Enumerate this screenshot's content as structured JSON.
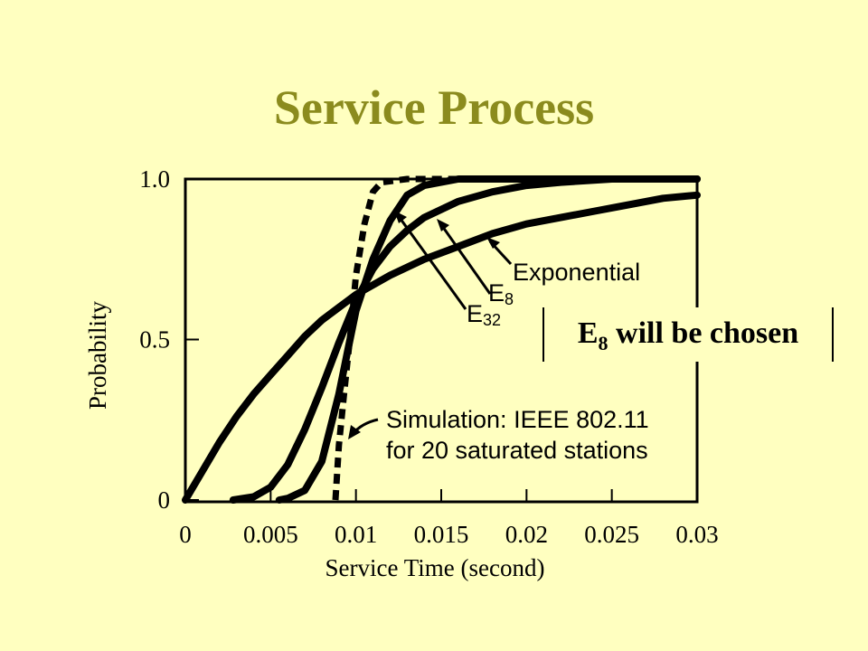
{
  "slide": {
    "title": "Service Process",
    "callout": {
      "main": "E",
      "sub": "8",
      "rest": " will be chosen"
    }
  },
  "chart_data": {
    "type": "line",
    "xlabel": "Service Time (second)",
    "ylabel": "Probability",
    "xlim": [
      0,
      0.03
    ],
    "ylim": [
      0,
      1.0
    ],
    "x_ticks": [
      {
        "v": 0,
        "label": "0"
      },
      {
        "v": 0.005,
        "label": "0.005"
      },
      {
        "v": 0.01,
        "label": "0.01"
      },
      {
        "v": 0.015,
        "label": "0.015"
      },
      {
        "v": 0.02,
        "label": "0.02"
      },
      {
        "v": 0.025,
        "label": "0.025"
      },
      {
        "v": 0.03,
        "label": "0.03"
      }
    ],
    "y_ticks": [
      {
        "v": 0,
        "label": "0"
      },
      {
        "v": 0.5,
        "label": "0.5"
      },
      {
        "v": 1.0,
        "label": "1.0"
      }
    ],
    "grid": false,
    "series": [
      {
        "name": "Exponential",
        "style": "solid",
        "points": [
          [
            0,
            0
          ],
          [
            0.001,
            0.09
          ],
          [
            0.002,
            0.18
          ],
          [
            0.003,
            0.26
          ],
          [
            0.004,
            0.33
          ],
          [
            0.005,
            0.39
          ],
          [
            0.006,
            0.45
          ],
          [
            0.007,
            0.51
          ],
          [
            0.008,
            0.56
          ],
          [
            0.009,
            0.6
          ],
          [
            0.01,
            0.64
          ],
          [
            0.012,
            0.7
          ],
          [
            0.014,
            0.75
          ],
          [
            0.016,
            0.79
          ],
          [
            0.018,
            0.83
          ],
          [
            0.02,
            0.86
          ],
          [
            0.022,
            0.88
          ],
          [
            0.024,
            0.9
          ],
          [
            0.026,
            0.92
          ],
          [
            0.028,
            0.94
          ],
          [
            0.03,
            0.95
          ]
        ]
      },
      {
        "name": "E8",
        "label_main": "E",
        "label_sub": "8",
        "style": "solid",
        "points": [
          [
            0.0028,
            0
          ],
          [
            0.004,
            0.01
          ],
          [
            0.005,
            0.04
          ],
          [
            0.006,
            0.11
          ],
          [
            0.007,
            0.22
          ],
          [
            0.008,
            0.35
          ],
          [
            0.009,
            0.49
          ],
          [
            0.01,
            0.62
          ],
          [
            0.011,
            0.72
          ],
          [
            0.012,
            0.79
          ],
          [
            0.013,
            0.84
          ],
          [
            0.014,
            0.88
          ],
          [
            0.016,
            0.93
          ],
          [
            0.018,
            0.96
          ],
          [
            0.02,
            0.98
          ],
          [
            0.022,
            0.99
          ],
          [
            0.025,
            1.0
          ],
          [
            0.03,
            1.0
          ]
        ]
      },
      {
        "name": "E32",
        "label_main": "E",
        "label_sub": "32",
        "style": "solid",
        "points": [
          [
            0.0055,
            0
          ],
          [
            0.006,
            0.005
          ],
          [
            0.007,
            0.03
          ],
          [
            0.008,
            0.12
          ],
          [
            0.009,
            0.33
          ],
          [
            0.0095,
            0.46
          ],
          [
            0.01,
            0.59
          ],
          [
            0.0105,
            0.67
          ],
          [
            0.011,
            0.75
          ],
          [
            0.012,
            0.87
          ],
          [
            0.013,
            0.95
          ],
          [
            0.014,
            0.98
          ],
          [
            0.016,
            1.0
          ],
          [
            0.03,
            1.0
          ]
        ]
      },
      {
        "name": "Simulation",
        "style": "dashed",
        "points": [
          [
            0.0088,
            0
          ],
          [
            0.009,
            0.17
          ],
          [
            0.0093,
            0.33
          ],
          [
            0.0097,
            0.53
          ],
          [
            0.01,
            0.7
          ],
          [
            0.0105,
            0.86
          ],
          [
            0.011,
            0.96
          ],
          [
            0.0115,
            0.99
          ],
          [
            0.013,
            1.0
          ],
          [
            0.03,
            1.0
          ]
        ]
      }
    ],
    "annotations": {
      "exponential_label": "Exponential",
      "simulation_line1": "Simulation: IEEE 802.11",
      "simulation_line2": "for 20 saturated stations"
    }
  }
}
